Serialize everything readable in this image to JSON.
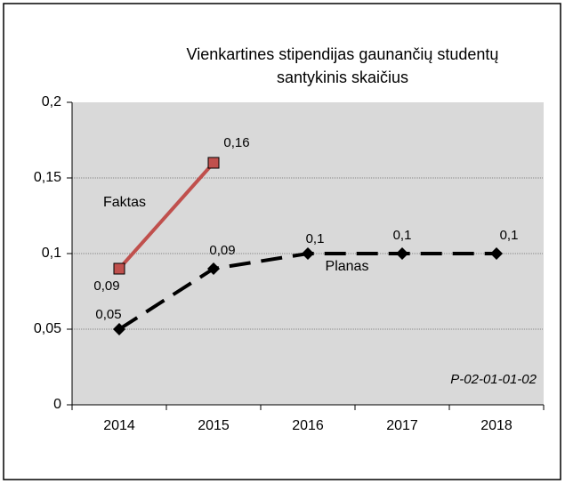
{
  "chart_data": {
    "type": "line",
    "title": [
      "Vienkartines stipendijas gaunančių studentų",
      "santykinis skaičius"
    ],
    "annotation": "P-02-01-01-02",
    "categories": [
      "2014",
      "2015",
      "2016",
      "2017",
      "2018"
    ],
    "series": [
      {
        "name": "Faktas",
        "color": "#c0504d",
        "marker": "square",
        "dash": false,
        "values": [
          0.09,
          0.16,
          null,
          null,
          null
        ],
        "value_labels": [
          "0,09",
          "0,16",
          null,
          null,
          null
        ]
      },
      {
        "name": "Planas",
        "color": "#000000",
        "marker": "diamond",
        "dash": true,
        "values": [
          0.05,
          0.09,
          0.1,
          0.1,
          0.1
        ],
        "value_labels": [
          "0,05",
          "0,09",
          "0,1",
          "0,1",
          "0,1"
        ]
      }
    ],
    "ylim": [
      0,
      0.2
    ],
    "yticks": [
      {
        "value": 0,
        "label": "0"
      },
      {
        "value": 0.05,
        "label": "0,05"
      },
      {
        "value": 0.1,
        "label": "0,1"
      },
      {
        "value": 0.15,
        "label": "0,15"
      },
      {
        "value": 0.2,
        "label": "0,2"
      }
    ],
    "grid": true
  }
}
